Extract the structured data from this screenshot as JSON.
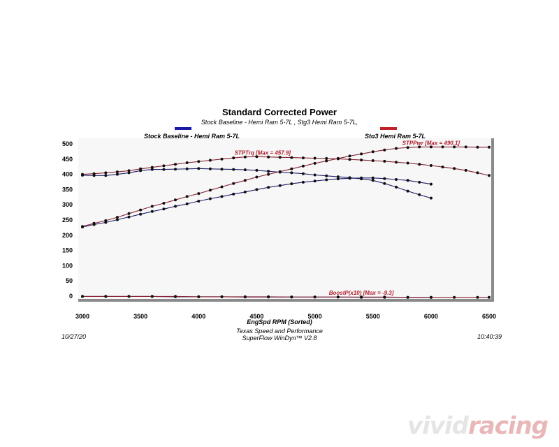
{
  "header": {
    "title": "Standard Corrected Power",
    "subtitle": "Stock Baseline - Hemi Ram 5-7L , Stg3 Hemi Ram 5-7L,"
  },
  "legend": {
    "stock_label": "Stock Baseline - Hemi Ram 5-7L",
    "stock_color": "#1a1aa6",
    "stg3_label": "Stg3 Hemi Ram 5-7L",
    "stg3_color": "#c0222c"
  },
  "footer": {
    "date": "10/27/20",
    "company": "Texas Speed and Performance",
    "software": "SuperFlow WinDyn™  V2.8",
    "time": "10:40:39"
  },
  "watermark": {
    "text_a": "vivid",
    "text_b": "racing"
  },
  "chart_data": {
    "type": "line",
    "title": "Standard Corrected Power",
    "xlabel": "EngSpd  RPM  (Sorted)",
    "ylabel": "",
    "xlim": [
      3000,
      6500
    ],
    "ylim": [
      0,
      500
    ],
    "x_ticks": [
      "3000",
      "3500",
      "4000",
      "4500",
      "5000",
      "5500",
      "6000",
      "6500"
    ],
    "y_ticks": [
      "0",
      "50",
      "100",
      "150",
      "200",
      "250",
      "300",
      "350",
      "400",
      "450",
      "500"
    ],
    "annotations": [
      {
        "text": "STPTrq [Max = 457.9]",
        "x": 4550,
        "y": 460
      },
      {
        "text": "STPPwr [Max = 490.1]",
        "x": 6000,
        "y": 492
      },
      {
        "text": "BoostP(x10) [Max = -9.3]",
        "x": 5400,
        "y": 0
      }
    ],
    "series": [
      {
        "name": "Stock Baseline - Hemi Ram 5-7L",
        "color": "#1f1f6e",
        "x": [
          3000,
          3100,
          3200,
          3300,
          3400,
          3500,
          3600,
          3700,
          3800,
          3900,
          4000,
          4100,
          4200,
          4300,
          4400,
          4500,
          4600,
          4700,
          4800,
          4900,
          5000,
          5100,
          5200,
          5300,
          5400,
          5500,
          5600,
          5700,
          5800,
          5900,
          6000
        ],
        "y": [
          397,
          396,
          396,
          400,
          405,
          412,
          416,
          416,
          417,
          418,
          419,
          418,
          417,
          416,
          415,
          413,
          410,
          407,
          405,
          402,
          398,
          395,
          392,
          389,
          385,
          380,
          370,
          358,
          345,
          333,
          322
        ]
      },
      {
        "name": "Stock Baseline - Hemi Ram 5-7L",
        "color": "#1f1f6e",
        "x": [
          3000,
          3100,
          3200,
          3300,
          3400,
          3500,
          3600,
          3700,
          3800,
          3900,
          4000,
          4100,
          4200,
          4300,
          4400,
          4500,
          4600,
          4700,
          4800,
          4900,
          5000,
          5100,
          5200,
          5300,
          5400,
          5500,
          5600,
          5700,
          5800,
          5900,
          6000
        ],
        "y": [
          227,
          235,
          242,
          251,
          260,
          269,
          278,
          286,
          295,
          303,
          312,
          320,
          327,
          335,
          342,
          350,
          357,
          363,
          369,
          374,
          378,
          382,
          385,
          387,
          388,
          388,
          386,
          383,
          380,
          374,
          368
        ]
      },
      {
        "name": "Stg3 Hemi Ram 5-7L",
        "color": "#8b2232",
        "x": [
          3000,
          3100,
          3200,
          3300,
          3400,
          3500,
          3600,
          3700,
          3800,
          3900,
          4000,
          4100,
          4200,
          4300,
          4400,
          4500,
          4600,
          4700,
          4800,
          4900,
          5000,
          5100,
          5200,
          5300,
          5400,
          5500,
          5600,
          5700,
          5800,
          5900,
          6000,
          6100,
          6200,
          6300,
          6400,
          6500
        ],
        "y": [
          400,
          402,
          405,
          408,
          412,
          418,
          423,
          428,
          433,
          438,
          442,
          446,
          450,
          454,
          457,
          458,
          457,
          456,
          455,
          454,
          453,
          452,
          451,
          449,
          447,
          445,
          443,
          440,
          437,
          433,
          429,
          424,
          419,
          413,
          405,
          396
        ]
      },
      {
        "name": "Stg3 Hemi Ram 5-7L",
        "color": "#8b2232",
        "x": [
          3000,
          3100,
          3200,
          3300,
          3400,
          3500,
          3600,
          3700,
          3800,
          3900,
          4000,
          4100,
          4200,
          4300,
          4400,
          4500,
          4600,
          4700,
          4800,
          4900,
          5000,
          5100,
          5200,
          5300,
          5400,
          5500,
          5600,
          5700,
          5800,
          5900,
          6000,
          6100,
          6200,
          6300,
          6400,
          6500
        ],
        "y": [
          229,
          239,
          248,
          259,
          271,
          283,
          295,
          305,
          316,
          327,
          337,
          348,
          359,
          370,
          380,
          391,
          400,
          409,
          418,
          427,
          436,
          444,
          452,
          460,
          467,
          474,
          480,
          485,
          488,
          490,
          490,
          490,
          490,
          490,
          489,
          489
        ]
      },
      {
        "name": "Stock Baseline - Hemi Ram 5-7L",
        "color": "#1f1f6e",
        "x": [
          3000,
          3200,
          3400,
          3600,
          3800,
          4000,
          4200,
          4400,
          4600,
          4800,
          5000,
          5200,
          5400,
          5600,
          5800,
          6000
        ],
        "y": [
          -1,
          -1,
          -1,
          -1,
          -2,
          -2,
          -2,
          -3,
          -3,
          -3,
          -3,
          -3,
          -4,
          -4,
          -4,
          -4
        ]
      },
      {
        "name": "Stg3 Hemi Ram 5-7L",
        "color": "#8b2232",
        "x": [
          3000,
          3200,
          3400,
          3600,
          3800,
          4000,
          4200,
          4400,
          4600,
          4800,
          5000,
          5200,
          5400,
          5600,
          5800,
          6000,
          6200,
          6400,
          6500
        ],
        "y": [
          -1,
          -1,
          -1,
          -1,
          -1,
          -2,
          -2,
          -2,
          -2,
          -3,
          -3,
          -3,
          -3,
          -3,
          -4,
          -4,
          -4,
          -4,
          -4
        ]
      }
    ]
  }
}
